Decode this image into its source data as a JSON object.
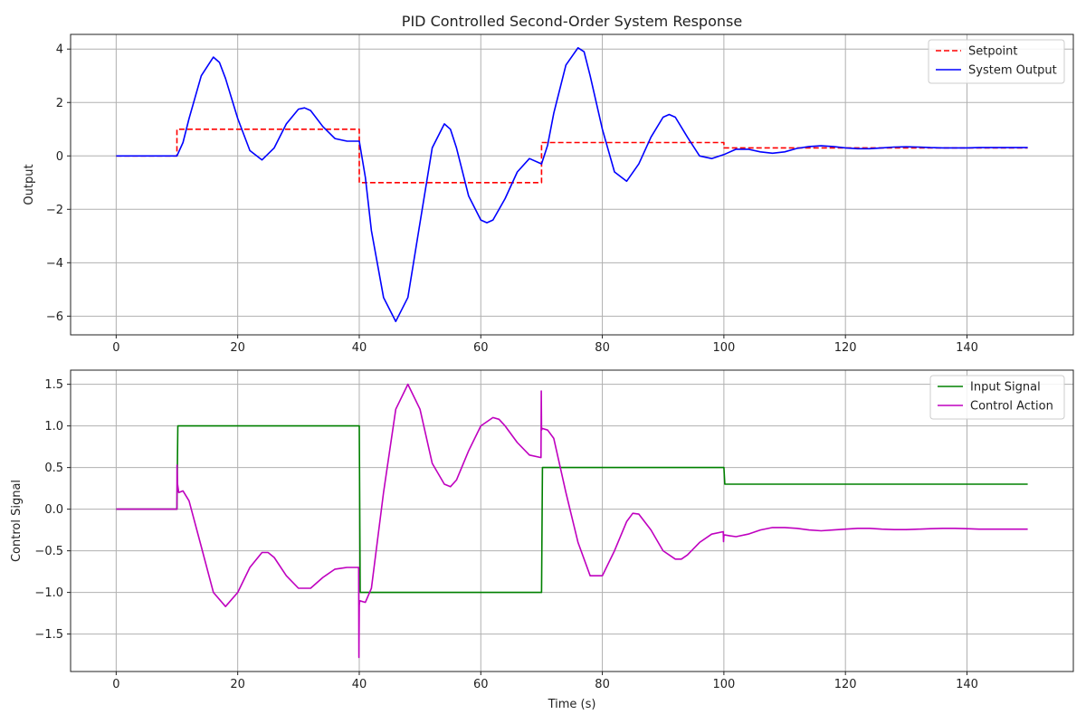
{
  "chart_data": [
    {
      "type": "line",
      "title": "PID Controlled Second-Order System Response",
      "xlabel": "",
      "ylabel": "Output",
      "xlim": [
        -7.5,
        157.5
      ],
      "ylim": [
        -6.7,
        4.55
      ],
      "grid": true,
      "legend_position": "top-right",
      "x_ticks": [
        0,
        20,
        40,
        60,
        80,
        100,
        120,
        140
      ],
      "y_ticks": [
        -6,
        -4,
        -2,
        0,
        2,
        4
      ],
      "x_tick_labels": [
        "0",
        "20",
        "40",
        "60",
        "80",
        "100",
        "120",
        "140"
      ],
      "y_tick_labels": [
        "−6",
        "−4",
        "−2",
        "0",
        "2",
        "4"
      ],
      "series": [
        {
          "name": "Setpoint",
          "color": "#ff0000",
          "style": "dashed",
          "x": [
            0,
            10,
            10,
            40,
            40,
            70,
            70,
            100,
            100,
            150
          ],
          "y": [
            0,
            0,
            1,
            1,
            -1,
            -1,
            0.5,
            0.5,
            0.3,
            0.3
          ]
        },
        {
          "name": "System Output",
          "color": "#0000ff",
          "style": "solid",
          "x": [
            0,
            10,
            11,
            12,
            14,
            16,
            17,
            18,
            20,
            22,
            24,
            26,
            28,
            30,
            31,
            32,
            34,
            36,
            38,
            40,
            41,
            42,
            44,
            46,
            48,
            50,
            52,
            54,
            55,
            56,
            58,
            60,
            61,
            62,
            64,
            66,
            68,
            70,
            71,
            72,
            74,
            76,
            77,
            78,
            80,
            82,
            84,
            86,
            88,
            90,
            91,
            92,
            94,
            96,
            98,
            100,
            102,
            104,
            106,
            108,
            110,
            112,
            114,
            116,
            118,
            120,
            122,
            124,
            126,
            128,
            130,
            132,
            134,
            136,
            138,
            140,
            142,
            144,
            146,
            148,
            150
          ],
          "y": [
            0,
            0,
            0.5,
            1.4,
            3.0,
            3.7,
            3.5,
            2.9,
            1.4,
            0.2,
            -0.15,
            0.3,
            1.2,
            1.75,
            1.8,
            1.7,
            1.1,
            0.65,
            0.55,
            0.55,
            -0.8,
            -2.8,
            -5.3,
            -6.2,
            -5.3,
            -2.5,
            0.3,
            1.2,
            1.0,
            0.3,
            -1.5,
            -2.4,
            -2.5,
            -2.4,
            -1.6,
            -0.6,
            -0.1,
            -0.3,
            0.4,
            1.6,
            3.4,
            4.05,
            3.9,
            3.0,
            1.0,
            -0.6,
            -0.95,
            -0.3,
            0.7,
            1.45,
            1.55,
            1.45,
            0.7,
            0.0,
            -0.1,
            0.05,
            0.25,
            0.25,
            0.15,
            0.1,
            0.15,
            0.28,
            0.35,
            0.38,
            0.35,
            0.3,
            0.27,
            0.27,
            0.3,
            0.33,
            0.34,
            0.33,
            0.31,
            0.3,
            0.3,
            0.3,
            0.31,
            0.31,
            0.31,
            0.31,
            0.31
          ]
        }
      ]
    },
    {
      "type": "line",
      "title": "",
      "xlabel": "Time (s)",
      "ylabel": "Control Signal",
      "xlim": [
        -7.5,
        157.5
      ],
      "ylim": [
        -1.95,
        1.67
      ],
      "grid": true,
      "legend_position": "top-right",
      "x_ticks": [
        0,
        20,
        40,
        60,
        80,
        100,
        120,
        140
      ],
      "y_ticks": [
        -1.5,
        -1.0,
        -0.5,
        0.0,
        0.5,
        1.0,
        1.5
      ],
      "x_tick_labels": [
        "0",
        "20",
        "40",
        "60",
        "80",
        "100",
        "120",
        "140"
      ],
      "y_tick_labels": [
        "−1.5",
        "−1.0",
        "−0.5",
        "0.0",
        "0.5",
        "1.0",
        "1.5"
      ],
      "series": [
        {
          "name": "Input Signal",
          "color": "#008000",
          "style": "solid",
          "x": [
            0,
            10,
            10.15,
            40,
            40.15,
            70,
            70.15,
            100,
            100.15,
            150
          ],
          "y": [
            0,
            0,
            1,
            1,
            -1,
            -1,
            0.5,
            0.5,
            0.3,
            0.3
          ]
        },
        {
          "name": "Control Action",
          "color": "#bf00bf",
          "style": "solid",
          "x": [
            0,
            10,
            10.02,
            10.1,
            10.3,
            11,
            12,
            14,
            16,
            18,
            20,
            22,
            24,
            25,
            26,
            28,
            30,
            32,
            34,
            36,
            38,
            39.9,
            39.95,
            40.0,
            40.1,
            41,
            42,
            44,
            46,
            48,
            50,
            52,
            54,
            55,
            56,
            58,
            60,
            62,
            63,
            64,
            66,
            68,
            69.9,
            69.95,
            70.0,
            70.1,
            71,
            72,
            74,
            76,
            78,
            80,
            82,
            84,
            85,
            86,
            88,
            90,
            92,
            93,
            94,
            96,
            98,
            99.9,
            99.95,
            100.0,
            100.1,
            101,
            102,
            104,
            106,
            108,
            110,
            112,
            114,
            116,
            118,
            120,
            122,
            124,
            126,
            128,
            130,
            132,
            134,
            136,
            138,
            140,
            142,
            144,
            146,
            148,
            150
          ],
          "y": [
            0,
            0,
            0.53,
            0.3,
            0.2,
            0.22,
            0.1,
            -0.45,
            -1.0,
            -1.17,
            -1.0,
            -0.7,
            -0.52,
            -0.52,
            -0.58,
            -0.8,
            -0.95,
            -0.95,
            -0.82,
            -0.72,
            -0.7,
            -0.7,
            -1.78,
            -1.15,
            -1.1,
            -1.12,
            -0.95,
            0.2,
            1.2,
            1.5,
            1.2,
            0.55,
            0.3,
            0.27,
            0.35,
            0.7,
            1.0,
            1.1,
            1.08,
            1.0,
            0.8,
            0.65,
            0.62,
            1.42,
            0.95,
            0.97,
            0.95,
            0.85,
            0.2,
            -0.4,
            -0.8,
            -0.8,
            -0.5,
            -0.15,
            -0.05,
            -0.06,
            -0.25,
            -0.5,
            -0.6,
            -0.6,
            -0.55,
            -0.4,
            -0.3,
            -0.27,
            -0.39,
            -0.32,
            -0.31,
            -0.32,
            -0.33,
            -0.3,
            -0.25,
            -0.22,
            -0.22,
            -0.23,
            -0.25,
            -0.26,
            -0.25,
            -0.24,
            -0.23,
            -0.23,
            -0.24,
            -0.245,
            -0.245,
            -0.24,
            -0.235,
            -0.23,
            -0.23,
            -0.235,
            -0.24,
            -0.24,
            -0.24,
            -0.24,
            -0.24
          ]
        }
      ]
    }
  ]
}
